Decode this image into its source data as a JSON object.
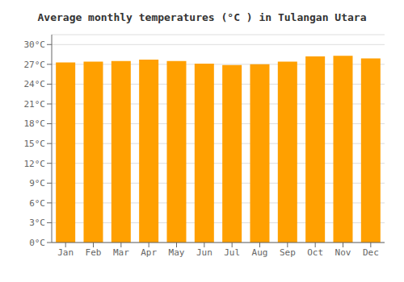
{
  "chart_data": {
    "type": "bar",
    "title": "Average monthly temperatures (°C ) in Tulangan Utara",
    "categories": [
      "Jan",
      "Feb",
      "Mar",
      "Apr",
      "May",
      "Jun",
      "Jul",
      "Aug",
      "Sep",
      "Oct",
      "Nov",
      "Dec"
    ],
    "values": [
      27.3,
      27.4,
      27.5,
      27.7,
      27.5,
      27.1,
      26.9,
      27.0,
      27.4,
      28.2,
      28.3,
      27.9
    ],
    "color": "#ffa000",
    "ylim": [
      0,
      31.5
    ],
    "yticks": [
      {
        "value": 0,
        "label": "0°C"
      },
      {
        "value": 3,
        "label": "3°C"
      },
      {
        "value": 6,
        "label": "6°C"
      },
      {
        "value": 9,
        "label": "9°C"
      },
      {
        "value": 12,
        "label": "12°C"
      },
      {
        "value": 15,
        "label": "15°C"
      },
      {
        "value": 18,
        "label": "18°C"
      },
      {
        "value": 21,
        "label": "21°C"
      },
      {
        "value": 24,
        "label": "24°C"
      },
      {
        "value": 27,
        "label": "27°C"
      },
      {
        "value": 30,
        "label": "30°C"
      }
    ],
    "grid": true
  }
}
